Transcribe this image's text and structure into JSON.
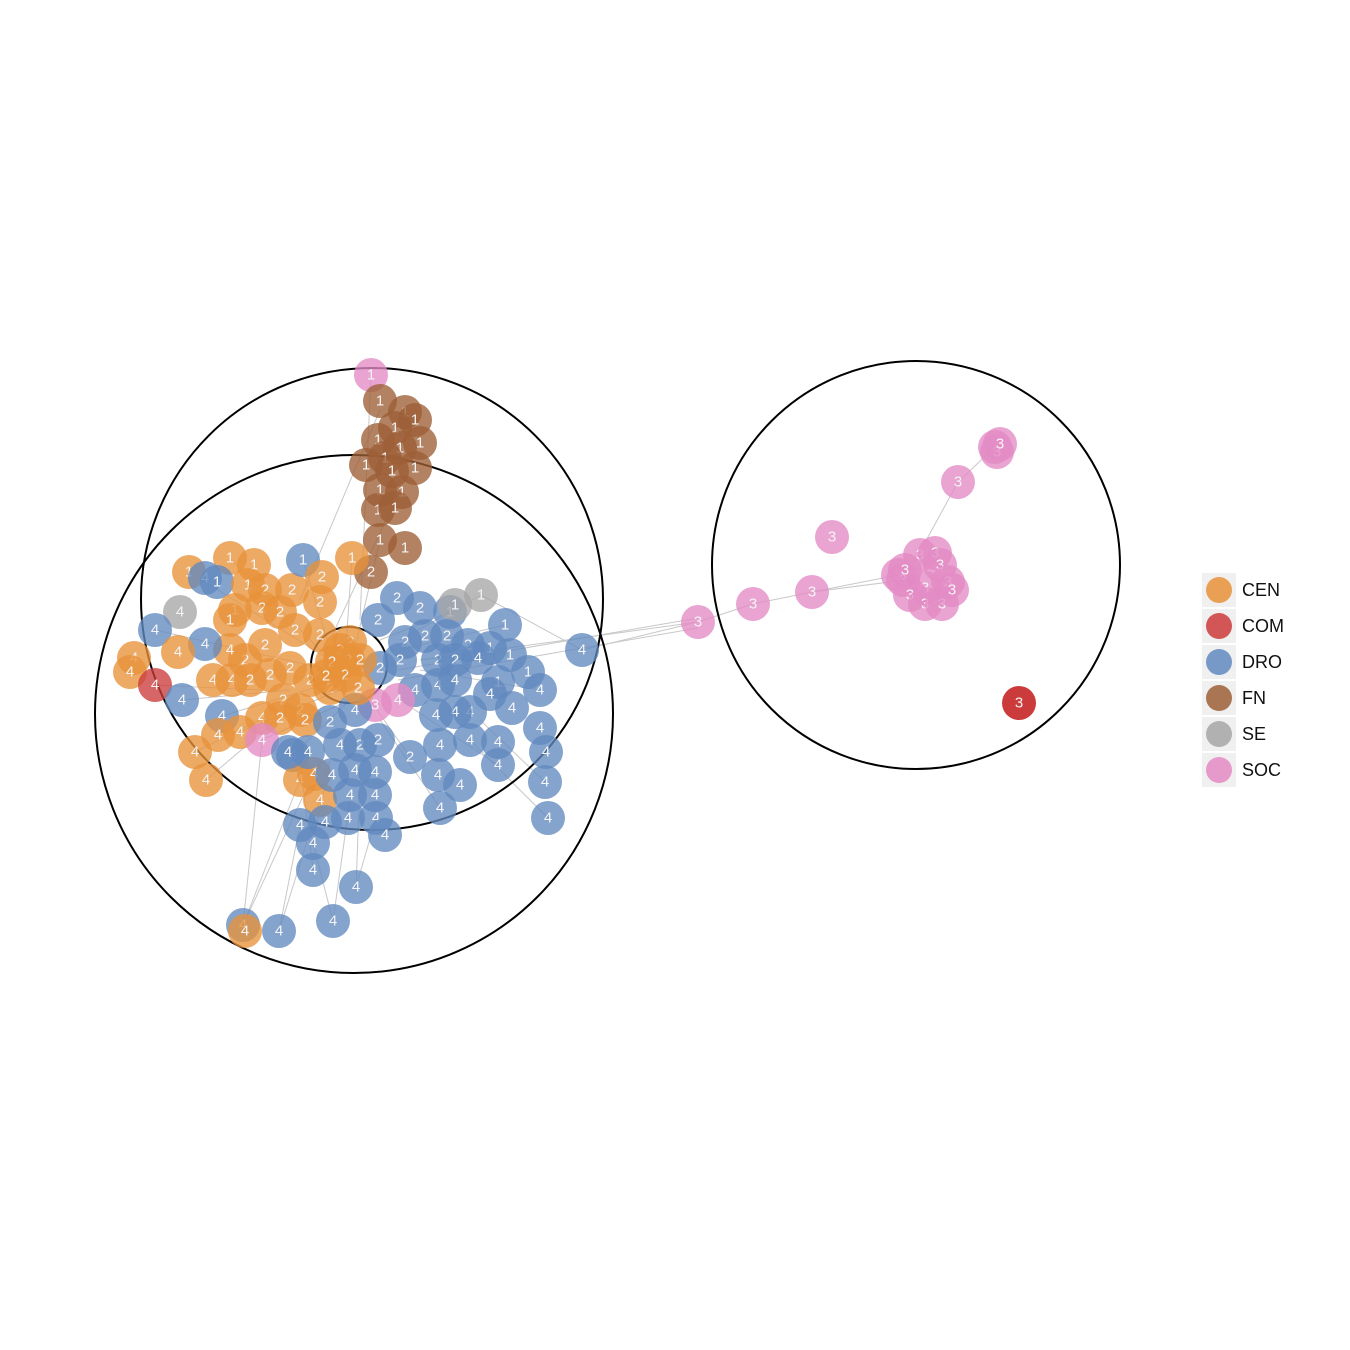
{
  "colors": {
    "CEN": "#e8923a",
    "COM": "#cc3b3b",
    "DRO": "#6189bf",
    "FN": "#9c5f36",
    "SE": "#a6a6a6",
    "SOC": "#e38bc4",
    "edge": "#c8c8c8",
    "ring": "#000000"
  },
  "legend": [
    {
      "key": "CEN",
      "label": "CEN"
    },
    {
      "key": "COM",
      "label": "COM"
    },
    {
      "key": "DRO",
      "label": "DRO"
    },
    {
      "key": "FN",
      "label": "FN"
    },
    {
      "key": "SE",
      "label": "SE"
    },
    {
      "key": "SOC",
      "label": "SOC"
    }
  ],
  "cluster_labels": [
    "1",
    "2",
    "3",
    "4"
  ]
}
